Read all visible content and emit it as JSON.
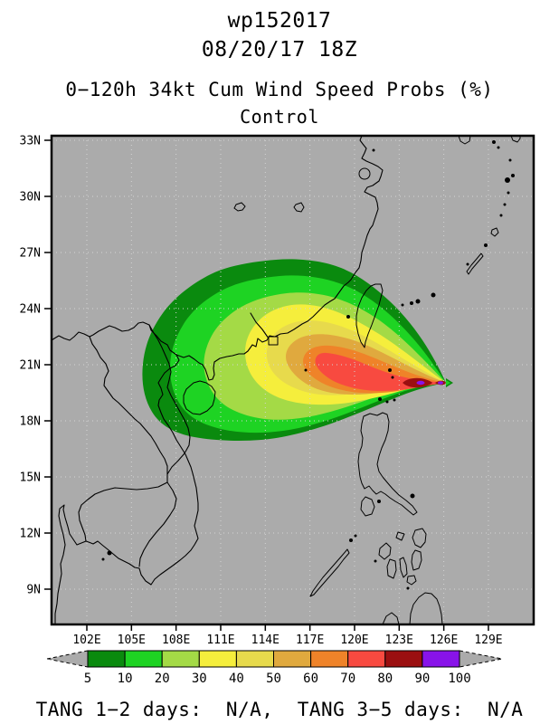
{
  "header": {
    "line1": "wp152017",
    "line2": "08/20/17 18Z",
    "line3": "0−120h 34kt Cum Wind Speed Probs (%)",
    "line4": "Control"
  },
  "footer": {
    "text": "TANG 1−2 days:  N/A,  TANG 3−5 days:  N/A"
  },
  "chart_data": {
    "type": "heatmap",
    "subtype": "filled-contour-probability-map",
    "title": "wp152017",
    "init_time": "08/20/17 18Z",
    "variable": "0-120h 34kt Cum Wind Speed Probs (%)",
    "ensemble_member": "Control",
    "map_extent": {
      "lon_min": 99.6,
      "lon_max": 131.6,
      "lat_min": 7.2,
      "lat_max": 33.2
    },
    "x_ticks": [
      "102E",
      "105E",
      "108E",
      "111E",
      "114E",
      "117E",
      "120E",
      "123E",
      "126E",
      "129E"
    ],
    "y_ticks": [
      "33N",
      "30N",
      "27N",
      "24N",
      "21N",
      "18N",
      "15N",
      "12N",
      "9N"
    ],
    "grid": true,
    "grid_color": "#d4d4d4",
    "background_color": "#ababab",
    "coastline_color": "#000000",
    "levels": [
      {
        "value": 5,
        "color": "#0a8a0e"
      },
      {
        "value": 10,
        "color": "#1ed323"
      },
      {
        "value": 20,
        "color": "#a4da46"
      },
      {
        "value": 30,
        "color": "#f5ee3c"
      },
      {
        "value": 40,
        "color": "#e7da4c"
      },
      {
        "value": 50,
        "color": "#e0a93e"
      },
      {
        "value": 60,
        "color": "#ef8329"
      },
      {
        "value": 70,
        "color": "#f84a40"
      },
      {
        "value": 80,
        "color": "#9b0f10"
      },
      {
        "value": 90,
        "color": "#8813e9"
      }
    ],
    "colorbar_labels": [
      "5",
      "10",
      "20",
      "30",
      "40",
      "50",
      "60",
      "70",
      "80",
      "90",
      "100"
    ],
    "probability_maximum_location": {
      "lon": 126.0,
      "lat": 20.1
    },
    "swath_extent": {
      "lon_min": 106.0,
      "lon_max": 126.5,
      "lat_min": 17.1,
      "lat_max": 26.9
    },
    "legend_note": "gray arrows = values beyond colorbar range"
  }
}
